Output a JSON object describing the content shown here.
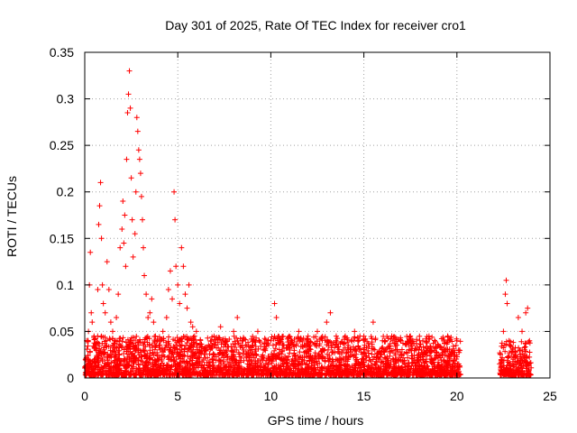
{
  "chart_data": {
    "type": "scatter",
    "title": "Day 301 of 2025, Rate Of TEC Index for receiver cro1",
    "xlabel": "GPS time / hours",
    "ylabel": "ROTI / TECUs",
    "xlim": [
      0,
      25
    ],
    "ylim": [
      0,
      0.35
    ],
    "xticks": [
      0,
      5,
      10,
      15,
      20,
      25
    ],
    "xtick_labels": [
      "0",
      "5",
      "10",
      "15",
      "20",
      "25"
    ],
    "yticks": [
      0,
      0.05,
      0.1,
      0.15,
      0.2,
      0.25,
      0.3,
      0.35
    ],
    "ytick_labels": [
      "0",
      "0.05",
      "0.1",
      "0.15",
      "0.2",
      "0.25",
      "0.3",
      "0.35"
    ],
    "grid": true,
    "marker": "+",
    "color": "#ff0000",
    "series": [
      {
        "name": "ROTI",
        "points": [
          [
            0.1,
            0.04
          ],
          [
            0.2,
            0.05
          ],
          [
            0.25,
            0.1
          ],
          [
            0.3,
            0.135
          ],
          [
            0.35,
            0.07
          ],
          [
            0.4,
            0.06
          ],
          [
            0.5,
            0.045
          ],
          [
            0.6,
            0.03
          ],
          [
            0.7,
            0.095
          ],
          [
            0.75,
            0.165
          ],
          [
            0.8,
            0.185
          ],
          [
            0.85,
            0.21
          ],
          [
            0.9,
            0.15
          ],
          [
            0.95,
            0.1
          ],
          [
            1.0,
            0.08
          ],
          [
            1.1,
            0.07
          ],
          [
            1.2,
            0.125
          ],
          [
            1.3,
            0.095
          ],
          [
            1.4,
            0.06
          ],
          [
            1.5,
            0.05
          ],
          [
            1.6,
            0.04
          ],
          [
            1.7,
            0.065
          ],
          [
            1.8,
            0.09
          ],
          [
            1.9,
            0.14
          ],
          [
            2.0,
            0.16
          ],
          [
            2.05,
            0.19
          ],
          [
            2.1,
            0.145
          ],
          [
            2.15,
            0.175
          ],
          [
            2.2,
            0.12
          ],
          [
            2.25,
            0.235
          ],
          [
            2.3,
            0.285
          ],
          [
            2.35,
            0.305
          ],
          [
            2.4,
            0.33
          ],
          [
            2.45,
            0.29
          ],
          [
            2.5,
            0.215
          ],
          [
            2.55,
            0.17
          ],
          [
            2.6,
            0.13
          ],
          [
            2.7,
            0.155
          ],
          [
            2.75,
            0.2
          ],
          [
            2.8,
            0.28
          ],
          [
            2.85,
            0.265
          ],
          [
            2.9,
            0.245
          ],
          [
            2.95,
            0.235
          ],
          [
            3.0,
            0.22
          ],
          [
            3.05,
            0.195
          ],
          [
            3.1,
            0.17
          ],
          [
            3.15,
            0.14
          ],
          [
            3.2,
            0.11
          ],
          [
            3.3,
            0.09
          ],
          [
            3.4,
            0.065
          ],
          [
            3.5,
            0.07
          ],
          [
            3.6,
            0.085
          ],
          [
            3.7,
            0.06
          ],
          [
            3.8,
            0.045
          ],
          [
            3.9,
            0.04
          ],
          [
            4.0,
            0.035
          ],
          [
            4.2,
            0.05
          ],
          [
            4.4,
            0.065
          ],
          [
            4.5,
            0.095
          ],
          [
            4.6,
            0.115
          ],
          [
            4.7,
            0.085
          ],
          [
            4.8,
            0.2
          ],
          [
            4.85,
            0.17
          ],
          [
            4.9,
            0.12
          ],
          [
            5.0,
            0.1
          ],
          [
            5.1,
            0.08
          ],
          [
            5.2,
            0.14
          ],
          [
            5.3,
            0.12
          ],
          [
            5.4,
            0.09
          ],
          [
            5.5,
            0.075
          ],
          [
            5.6,
            0.1
          ],
          [
            5.7,
            0.06
          ],
          [
            5.8,
            0.055
          ],
          [
            5.9,
            0.045
          ],
          [
            6.0,
            0.05
          ],
          [
            6.2,
            0.035
          ],
          [
            6.5,
            0.03
          ],
          [
            6.8,
            0.04
          ],
          [
            7.0,
            0.035
          ],
          [
            7.3,
            0.055
          ],
          [
            7.6,
            0.03
          ],
          [
            8.0,
            0.05
          ],
          [
            8.2,
            0.065
          ],
          [
            8.5,
            0.04
          ],
          [
            9.0,
            0.035
          ],
          [
            9.3,
            0.05
          ],
          [
            9.6,
            0.03
          ],
          [
            10.0,
            0.04
          ],
          [
            10.2,
            0.08
          ],
          [
            10.3,
            0.065
          ],
          [
            10.5,
            0.04
          ],
          [
            11.0,
            0.035
          ],
          [
            11.5,
            0.05
          ],
          [
            12.0,
            0.045
          ],
          [
            12.5,
            0.05
          ],
          [
            13.0,
            0.06
          ],
          [
            13.2,
            0.07
          ],
          [
            13.5,
            0.04
          ],
          [
            14.0,
            0.045
          ],
          [
            14.5,
            0.05
          ],
          [
            15.0,
            0.045
          ],
          [
            15.5,
            0.06
          ],
          [
            16.0,
            0.04
          ],
          [
            16.5,
            0.045
          ],
          [
            17.0,
            0.04
          ],
          [
            17.5,
            0.045
          ],
          [
            18.0,
            0.04
          ],
          [
            18.5,
            0.045
          ],
          [
            19.0,
            0.035
          ],
          [
            19.5,
            0.045
          ],
          [
            20.0,
            0.04
          ],
          [
            20.1,
            0.03
          ],
          [
            22.5,
            0.05
          ],
          [
            22.6,
            0.09
          ],
          [
            22.65,
            0.105
          ],
          [
            22.7,
            0.08
          ],
          [
            22.8,
            0.04
          ],
          [
            23.0,
            0.03
          ],
          [
            23.3,
            0.065
          ],
          [
            23.5,
            0.05
          ],
          [
            23.7,
            0.07
          ],
          [
            23.8,
            0.075
          ],
          [
            23.9,
            0.04
          ]
        ]
      }
    ],
    "dense_band": {
      "segments": [
        {
          "x_range": [
            0,
            20.2
          ],
          "y_range": [
            0.003,
            0.045
          ]
        },
        {
          "x_range": [
            22.3,
            24.0
          ],
          "y_range": [
            0.003,
            0.04
          ]
        }
      ]
    }
  }
}
